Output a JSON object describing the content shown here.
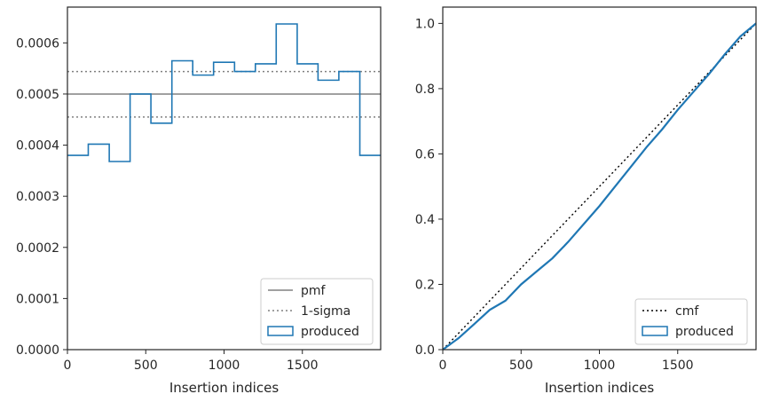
{
  "chart_data": [
    {
      "type": "line",
      "xlabel": "Insertion indices",
      "ylabel": "",
      "xlim": [
        0,
        2000
      ],
      "ylim": [
        0,
        0.00067
      ],
      "xticks": [
        0,
        500,
        1000,
        1500
      ],
      "xtick_labels": [
        "0",
        "500",
        "1000",
        "1500"
      ],
      "yticks": [
        0,
        0.0001,
        0.0002,
        0.0003,
        0.0004,
        0.0005,
        0.0006
      ],
      "ytick_labels": [
        "0.0000",
        "0.0001",
        "0.0002",
        "0.0003",
        "0.0004",
        "0.0005",
        "0.0006"
      ],
      "legend_position": "lower-right",
      "reference_lines": [
        {
          "name": "pmf",
          "y": 0.0005,
          "style": "solid",
          "color": "#808080"
        },
        {
          "name": "1-sigma",
          "y": 0.000455,
          "style": "dotted",
          "color": "#808080"
        },
        {
          "name": "1-sigma",
          "y": 0.000544,
          "style": "dotted",
          "color": "#808080"
        }
      ],
      "series": [
        {
          "name": "produced",
          "style": "step-histogram",
          "color": "#1f77b4",
          "bin_edges": [
            0,
            133,
            267,
            400,
            533,
            667,
            800,
            933,
            1067,
            1200,
            1333,
            1467,
            1600,
            1733,
            1867,
            2000
          ],
          "values": [
            0.00038,
            0.000402,
            0.000368,
            0.0005,
            0.000443,
            0.000565,
            0.000537,
            0.000562,
            0.000544,
            0.000559,
            0.000637,
            0.000559,
            0.000527,
            0.000544,
            0.00038
          ]
        }
      ],
      "legend": [
        {
          "label": "pmf",
          "kind": "solid-line",
          "color": "#808080"
        },
        {
          "label": "1-sigma",
          "kind": "dotted-line",
          "color": "#808080"
        },
        {
          "label": "produced",
          "kind": "box",
          "color": "#1f77b4"
        }
      ]
    },
    {
      "type": "line",
      "xlabel": "Insertion indices",
      "ylabel": "",
      "xlim": [
        0,
        2000
      ],
      "ylim": [
        0,
        1.05
      ],
      "xticks": [
        0,
        500,
        1000,
        1500
      ],
      "xtick_labels": [
        "0",
        "500",
        "1000",
        "1500"
      ],
      "yticks": [
        0,
        0.2,
        0.4,
        0.6,
        0.8,
        1.0
      ],
      "ytick_labels": [
        "0.0",
        "0.2",
        "0.4",
        "0.6",
        "0.8",
        "1.0"
      ],
      "legend_position": "lower-right",
      "series": [
        {
          "name": "cmf",
          "style": "dotted",
          "color": "#000000",
          "x": [
            0,
            2000
          ],
          "y": [
            0,
            1.0
          ]
        },
        {
          "name": "produced",
          "style": "solid",
          "color": "#1f77b4",
          "x": [
            0,
            100,
            200,
            300,
            400,
            500,
            600,
            700,
            800,
            900,
            1000,
            1100,
            1200,
            1300,
            1400,
            1500,
            1600,
            1700,
            1800,
            1900,
            2000
          ],
          "y": [
            0,
            0.035,
            0.078,
            0.122,
            0.15,
            0.2,
            0.24,
            0.28,
            0.33,
            0.385,
            0.44,
            0.5,
            0.56,
            0.62,
            0.675,
            0.735,
            0.79,
            0.845,
            0.905,
            0.96,
            1.0
          ]
        }
      ],
      "legend": [
        {
          "label": "cmf",
          "kind": "dotted-line",
          "color": "#000000"
        },
        {
          "label": "produced",
          "kind": "box",
          "color": "#1f77b4"
        }
      ]
    }
  ]
}
